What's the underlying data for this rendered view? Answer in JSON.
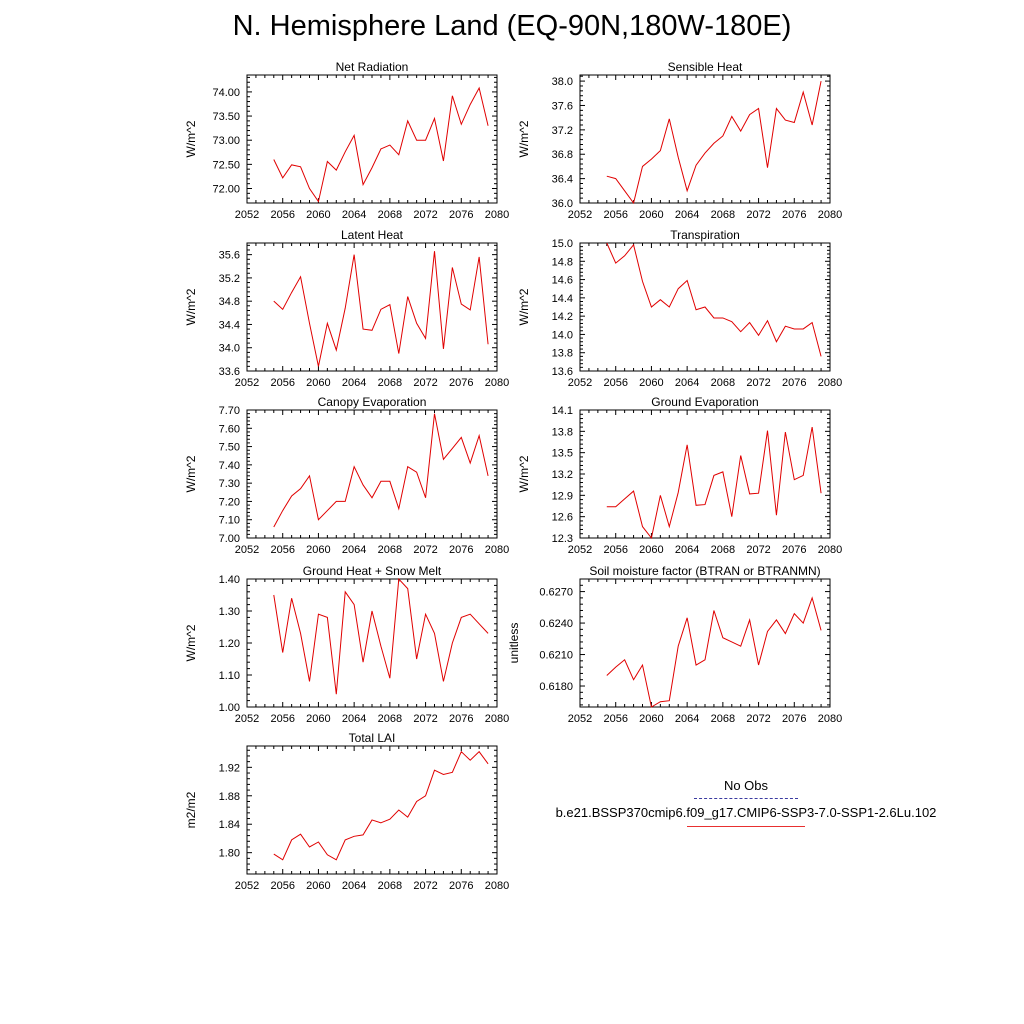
{
  "figure": {
    "title": "N. Hemisphere Land (EQ-90N,180W-180E)",
    "line_color": "#e00000",
    "legend": {
      "obs_label": "No Obs",
      "obs_line_color": "#3a3aa0",
      "model_label": "b.e21.BSSP370cmip6.f09_g17.CMIP6-SSP3-7.0-SSP1-2.6Lu.102",
      "model_line_color": "#e83030"
    }
  },
  "chart_data": [
    {
      "type": "line",
      "title": "Net Radiation",
      "ylabel": "W/m^2",
      "xlim": [
        2052,
        2080
      ],
      "ylim": [
        71.7,
        74.35
      ],
      "xticks": [
        "2052",
        "2056",
        "2060",
        "2064",
        "2068",
        "2072",
        "2076",
        "2080"
      ],
      "yticks": [
        "72.00",
        "72.50",
        "73.00",
        "73.50",
        "74.00"
      ],
      "x": [
        2055,
        2056,
        2057,
        2058,
        2059,
        2060,
        2061,
        2062,
        2063,
        2064,
        2065,
        2066,
        2067,
        2068,
        2069,
        2070,
        2071,
        2072,
        2073,
        2074,
        2075,
        2076,
        2077,
        2078,
        2079
      ],
      "y": [
        72.6,
        72.22,
        72.49,
        72.45,
        72.0,
        71.73,
        72.56,
        72.38,
        72.76,
        73.1,
        72.08,
        72.43,
        72.82,
        72.9,
        72.7,
        73.4,
        73.0,
        73.0,
        73.45,
        72.57,
        73.92,
        73.33,
        73.74,
        74.08,
        73.3
      ]
    },
    {
      "type": "line",
      "title": "Sensible Heat",
      "ylabel": "W/m^2",
      "xlim": [
        2052,
        2080
      ],
      "ylim": [
        36.0,
        38.1
      ],
      "xticks": [
        "2052",
        "2056",
        "2060",
        "2064",
        "2068",
        "2072",
        "2076",
        "2080"
      ],
      "yticks": [
        "36.0",
        "36.4",
        "36.8",
        "37.2",
        "37.6",
        "38.0"
      ],
      "x": [
        2055,
        2056,
        2057,
        2058,
        2059,
        2060,
        2061,
        2062,
        2063,
        2064,
        2065,
        2066,
        2067,
        2068,
        2069,
        2070,
        2071,
        2072,
        2073,
        2074,
        2075,
        2076,
        2077,
        2078,
        2079
      ],
      "y": [
        36.44,
        36.4,
        36.2,
        36.0,
        36.6,
        36.72,
        36.86,
        37.38,
        36.75,
        36.2,
        36.62,
        36.82,
        36.98,
        37.1,
        37.42,
        37.18,
        37.45,
        37.55,
        36.58,
        37.55,
        37.36,
        37.32,
        37.82,
        37.28,
        38.0
      ]
    },
    {
      "type": "line",
      "title": "Latent Heat",
      "ylabel": "W/m^2",
      "xlim": [
        2052,
        2080
      ],
      "ylim": [
        33.6,
        35.8
      ],
      "xticks": [
        "2052",
        "2056",
        "2060",
        "2064",
        "2068",
        "2072",
        "2076",
        "2080"
      ],
      "yticks": [
        "33.6",
        "34.0",
        "34.4",
        "34.8",
        "35.2",
        "35.6"
      ],
      "x": [
        2055,
        2056,
        2057,
        2058,
        2059,
        2060,
        2061,
        2062,
        2063,
        2064,
        2065,
        2066,
        2067,
        2068,
        2069,
        2070,
        2071,
        2072,
        2073,
        2074,
        2075,
        2076,
        2077,
        2078,
        2079
      ],
      "y": [
        34.8,
        34.66,
        34.95,
        35.22,
        34.42,
        33.68,
        34.42,
        33.96,
        34.68,
        35.6,
        34.32,
        34.3,
        34.66,
        34.74,
        33.9,
        34.88,
        34.42,
        34.16,
        35.66,
        33.98,
        35.38,
        34.75,
        34.65,
        35.56,
        34.06
      ]
    },
    {
      "type": "line",
      "title": "Transpiration",
      "ylabel": "W/m^2",
      "xlim": [
        2052,
        2080
      ],
      "ylim": [
        13.6,
        15.0
      ],
      "xticks": [
        "2052",
        "2056",
        "2060",
        "2064",
        "2068",
        "2072",
        "2076",
        "2080"
      ],
      "yticks": [
        "13.6",
        "13.8",
        "14.0",
        "14.2",
        "14.4",
        "14.6",
        "14.8",
        "15.0"
      ],
      "x": [
        2055,
        2056,
        2057,
        2058,
        2059,
        2060,
        2061,
        2062,
        2063,
        2064,
        2065,
        2066,
        2067,
        2068,
        2069,
        2070,
        2071,
        2072,
        2073,
        2074,
        2075,
        2076,
        2077,
        2078,
        2079
      ],
      "y": [
        15.0,
        14.78,
        14.86,
        14.98,
        14.58,
        14.3,
        14.38,
        14.3,
        14.5,
        14.59,
        14.27,
        14.3,
        14.18,
        14.18,
        14.14,
        14.03,
        14.13,
        13.99,
        14.15,
        13.92,
        14.09,
        14.06,
        14.06,
        14.13,
        13.76
      ]
    },
    {
      "type": "line",
      "title": "Canopy Evaporation",
      "ylabel": "W/m^2",
      "xlim": [
        2052,
        2080
      ],
      "ylim": [
        7.0,
        7.7
      ],
      "xticks": [
        "2052",
        "2056",
        "2060",
        "2064",
        "2068",
        "2072",
        "2076",
        "2080"
      ],
      "yticks": [
        "7.00",
        "7.10",
        "7.20",
        "7.30",
        "7.40",
        "7.50",
        "7.60",
        "7.70"
      ],
      "x": [
        2055,
        2056,
        2057,
        2058,
        2059,
        2060,
        2061,
        2062,
        2063,
        2064,
        2065,
        2066,
        2067,
        2068,
        2069,
        2070,
        2071,
        2072,
        2073,
        2074,
        2075,
        2076,
        2077,
        2078,
        2079
      ],
      "y": [
        7.06,
        7.15,
        7.23,
        7.27,
        7.34,
        7.1,
        7.15,
        7.2,
        7.2,
        7.39,
        7.29,
        7.22,
        7.31,
        7.31,
        7.16,
        7.39,
        7.36,
        7.22,
        7.68,
        7.43,
        7.49,
        7.55,
        7.41,
        7.56,
        7.34
      ]
    },
    {
      "type": "line",
      "title": "Ground Evaporation",
      "ylabel": "W/m^2",
      "xlim": [
        2052,
        2080
      ],
      "ylim": [
        12.3,
        14.1
      ],
      "xticks": [
        "2052",
        "2056",
        "2060",
        "2064",
        "2068",
        "2072",
        "2076",
        "2080"
      ],
      "yticks": [
        "12.3",
        "12.6",
        "12.9",
        "13.2",
        "13.5",
        "13.8",
        "14.1"
      ],
      "x": [
        2055,
        2056,
        2057,
        2058,
        2059,
        2060,
        2061,
        2062,
        2063,
        2064,
        2065,
        2066,
        2067,
        2068,
        2069,
        2070,
        2071,
        2072,
        2073,
        2074,
        2075,
        2076,
        2077,
        2078,
        2079
      ],
      "y": [
        12.74,
        12.74,
        12.85,
        12.96,
        12.46,
        12.28,
        12.9,
        12.46,
        12.94,
        13.61,
        12.76,
        12.77,
        13.18,
        13.23,
        12.6,
        13.46,
        12.92,
        12.93,
        13.81,
        12.62,
        13.79,
        13.12,
        13.18,
        13.86,
        12.93
      ]
    },
    {
      "type": "line",
      "title": "Ground Heat + Snow Melt",
      "ylabel": "W/m^2",
      "xlim": [
        2052,
        2080
      ],
      "ylim": [
        1.0,
        1.4
      ],
      "xticks": [
        "2052",
        "2056",
        "2060",
        "2064",
        "2068",
        "2072",
        "2076",
        "2080"
      ],
      "yticks": [
        "1.00",
        "1.10",
        "1.20",
        "1.30",
        "1.40"
      ],
      "x": [
        2055,
        2056,
        2057,
        2058,
        2059,
        2060,
        2061,
        2062,
        2063,
        2064,
        2065,
        2066,
        2067,
        2068,
        2069,
        2070,
        2071,
        2072,
        2073,
        2074,
        2075,
        2076,
        2077,
        2078,
        2079
      ],
      "y": [
        1.35,
        1.17,
        1.34,
        1.23,
        1.08,
        1.29,
        1.28,
        1.04,
        1.36,
        1.32,
        1.14,
        1.3,
        1.19,
        1.09,
        1.4,
        1.37,
        1.15,
        1.29,
        1.23,
        1.08,
        1.2,
        1.28,
        1.29,
        1.26,
        1.23
      ]
    },
    {
      "type": "line",
      "title": "Soil moisture factor (BTRAN or BTRANMN)",
      "ylabel": "unitless",
      "xlim": [
        2052,
        2080
      ],
      "ylim": [
        0.616,
        0.6282
      ],
      "xticks": [
        "2052",
        "2056",
        "2060",
        "2064",
        "2068",
        "2072",
        "2076",
        "2080"
      ],
      "yticks": [
        "0.6180",
        "0.6210",
        "0.6240",
        "0.6270"
      ],
      "x": [
        2055,
        2056,
        2057,
        2058,
        2059,
        2060,
        2061,
        2062,
        2063,
        2064,
        2065,
        2066,
        2067,
        2068,
        2069,
        2070,
        2071,
        2072,
        2073,
        2074,
        2075,
        2076,
        2077,
        2078,
        2079
      ],
      "y": [
        0.619,
        0.6198,
        0.6205,
        0.6186,
        0.62,
        0.616,
        0.6165,
        0.6166,
        0.6218,
        0.6245,
        0.62,
        0.6205,
        0.6252,
        0.6226,
        0.6222,
        0.6218,
        0.6243,
        0.62,
        0.6232,
        0.6243,
        0.623,
        0.6249,
        0.624,
        0.6264,
        0.6233
      ]
    },
    {
      "type": "line",
      "title": "Total LAI",
      "ylabel": "m2/m2",
      "xlim": [
        2052,
        2080
      ],
      "ylim": [
        1.77,
        1.95
      ],
      "xticks": [
        "2052",
        "2056",
        "2060",
        "2064",
        "2068",
        "2072",
        "2076",
        "2080"
      ],
      "yticks": [
        "1.80",
        "1.84",
        "1.88",
        "1.92"
      ],
      "x": [
        2055,
        2056,
        2057,
        2058,
        2059,
        2060,
        2061,
        2062,
        2063,
        2064,
        2065,
        2066,
        2067,
        2068,
        2069,
        2070,
        2071,
        2072,
        2073,
        2074,
        2075,
        2076,
        2077,
        2078,
        2079
      ],
      "y": [
        1.798,
        1.79,
        1.818,
        1.826,
        1.808,
        1.815,
        1.797,
        1.79,
        1.818,
        1.823,
        1.825,
        1.846,
        1.842,
        1.847,
        1.86,
        1.85,
        1.872,
        1.88,
        1.916,
        1.91,
        1.913,
        1.942,
        1.93,
        1.942,
        1.925
      ]
    }
  ]
}
